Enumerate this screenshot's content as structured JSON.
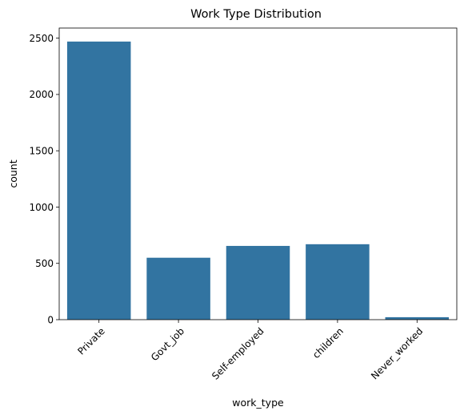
{
  "chart_data": {
    "type": "bar",
    "title": "Work Type Distribution",
    "xlabel": "work_type",
    "ylabel": "count",
    "categories": [
      "Private",
      "Govt_job",
      "Self-employed",
      "children",
      "Never_worked"
    ],
    "values": [
      2470,
      550,
      655,
      670,
      22
    ],
    "ylim": [
      0,
      2590
    ],
    "yticks": [
      0,
      500,
      1000,
      1500,
      2000,
      2500
    ],
    "bar_color": "#3274a1",
    "grid": false
  }
}
